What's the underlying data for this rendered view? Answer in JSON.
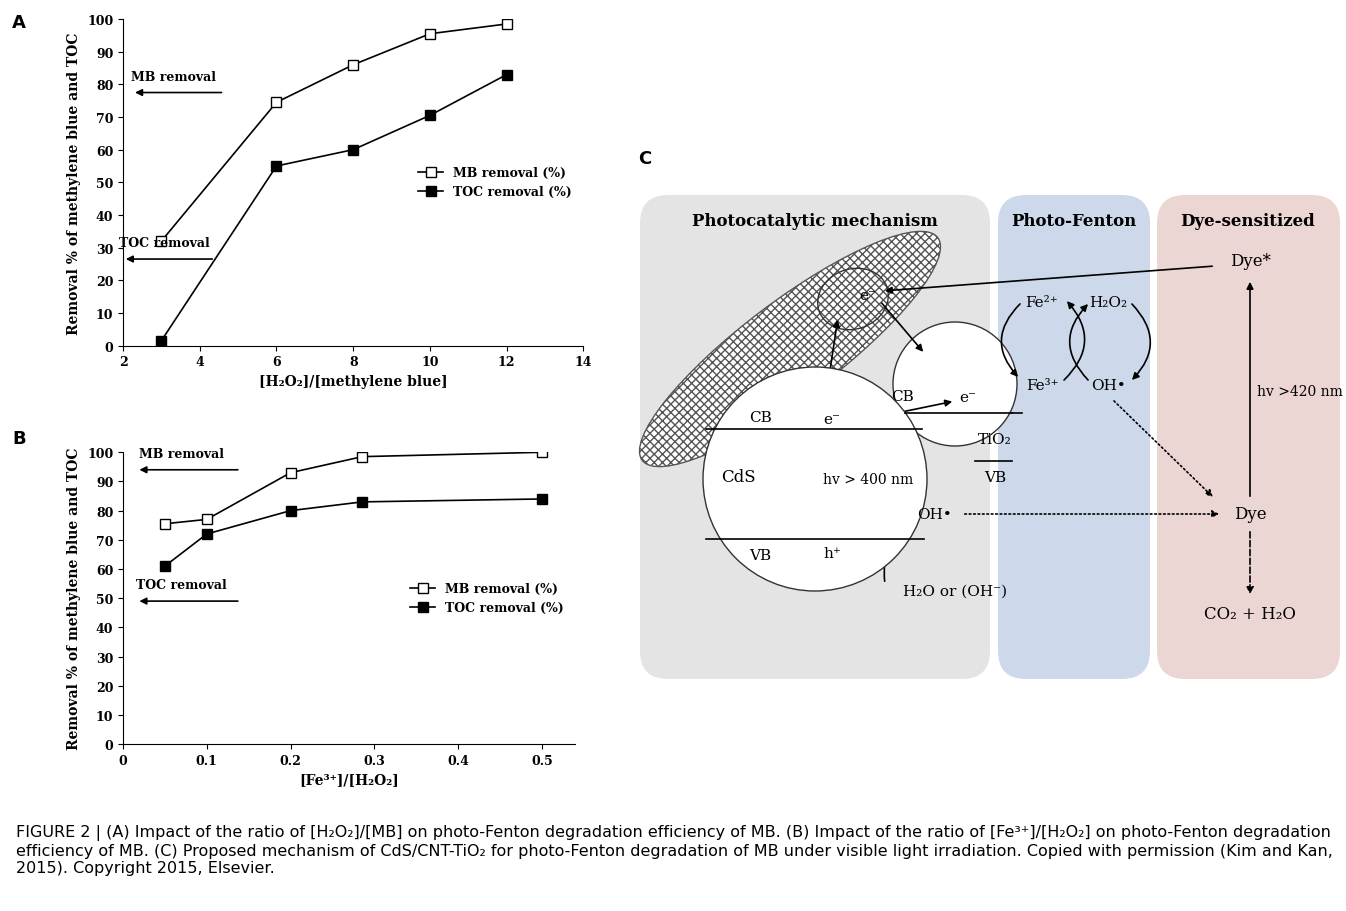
{
  "panel_labels": [
    "A",
    "B",
    "C"
  ],
  "chart_data": [
    {
      "type": "line",
      "x_label": "[H₂O₂]/[methylene blue]",
      "y_label": "Removal % of methylene blue and TOC",
      "x": [
        3,
        6,
        8,
        10,
        12
      ],
      "series": [
        {
          "name": "MB removal (%)",
          "color": "#000000",
          "marker": "open_square",
          "values": [
            32,
            74.5,
            86,
            95.5,
            98.5
          ]
        },
        {
          "name": "TOC removal (%)",
          "color": "#000000",
          "marker": "square",
          "values": [
            1.5,
            55,
            60,
            70.5,
            83
          ]
        }
      ],
      "xlim": [
        2,
        14
      ],
      "ylim": [
        0,
        100
      ],
      "xticks": [
        2,
        4,
        6,
        8,
        10,
        12,
        14
      ],
      "yticks": [
        0,
        10,
        20,
        30,
        40,
        50,
        60,
        70,
        80,
        90,
        100
      ],
      "legend": "center right",
      "annotations": [
        "MB removal",
        "TOC removal"
      ]
    },
    {
      "type": "line",
      "x_label": "[Fe³⁺]/[H₂O₂]",
      "y_label": "Removal % of methylene blue and TOC",
      "x": [
        0.05,
        0.1,
        0.2,
        0.2857,
        0.5
      ],
      "series": [
        {
          "name": "MB removal (%)",
          "color": "#000000",
          "marker": "open_square",
          "values": [
            75.5,
            77,
            93,
            98.5,
            100
          ]
        },
        {
          "name": "TOC removal (%)",
          "color": "#000000",
          "marker": "square",
          "values": [
            61,
            72,
            80,
            83,
            84
          ]
        }
      ],
      "xlim": [
        0,
        0.54
      ],
      "ylim": [
        0,
        100
      ],
      "xticks": [
        0,
        0.1,
        0.2,
        0.3,
        0.4,
        0.5
      ],
      "yticks": [
        0,
        10,
        20,
        30,
        40,
        50,
        60,
        70,
        80,
        90,
        100
      ],
      "legend": "center right",
      "annotations": [
        "MB removal",
        "TOC removal"
      ]
    }
  ],
  "diagram": {
    "sections": [
      "Photocatalytic mechanism",
      "Photo-Fenton",
      "Dye-sensitized"
    ],
    "cds": {
      "name": "CdS",
      "cb": "CB",
      "vb": "VB",
      "electron": "e⁻",
      "hole": "h⁺",
      "excitation": "hv > 400 nm"
    },
    "tio2": {
      "name": "TiO₂",
      "cb": "CB",
      "vb": "VB",
      "electron": "e⁻"
    },
    "cnt_electron": "e⁻",
    "hydroxyl": "OH•",
    "water": "H₂O or (OH⁻)",
    "fenton": {
      "fe2": "Fe²⁺",
      "fe3": "Fe³⁺",
      "h2o2": "H₂O₂",
      "oh": "OH•"
    },
    "dye": {
      "excited": "Dye*",
      "ground": "Dye",
      "excitation": "hv >420 nm",
      "products": "CO₂ + H₂O"
    }
  },
  "caption": "FIGURE 2 | (A) Impact of the ratio of [H₂O₂]/[MB] on photo-Fenton degradation efficiency of MB. (B) Impact of the ratio of [Fe³⁺]/[H₂O₂] on photo-Fenton degradation efficiency of MB. (C) Proposed mechanism of CdS/CNT-TiO₂ for photo-Fenton degradation of MB under visible light irradiation. Copied with permission (Kim and Kan, 2015). Copyright 2015, Elsevier."
}
